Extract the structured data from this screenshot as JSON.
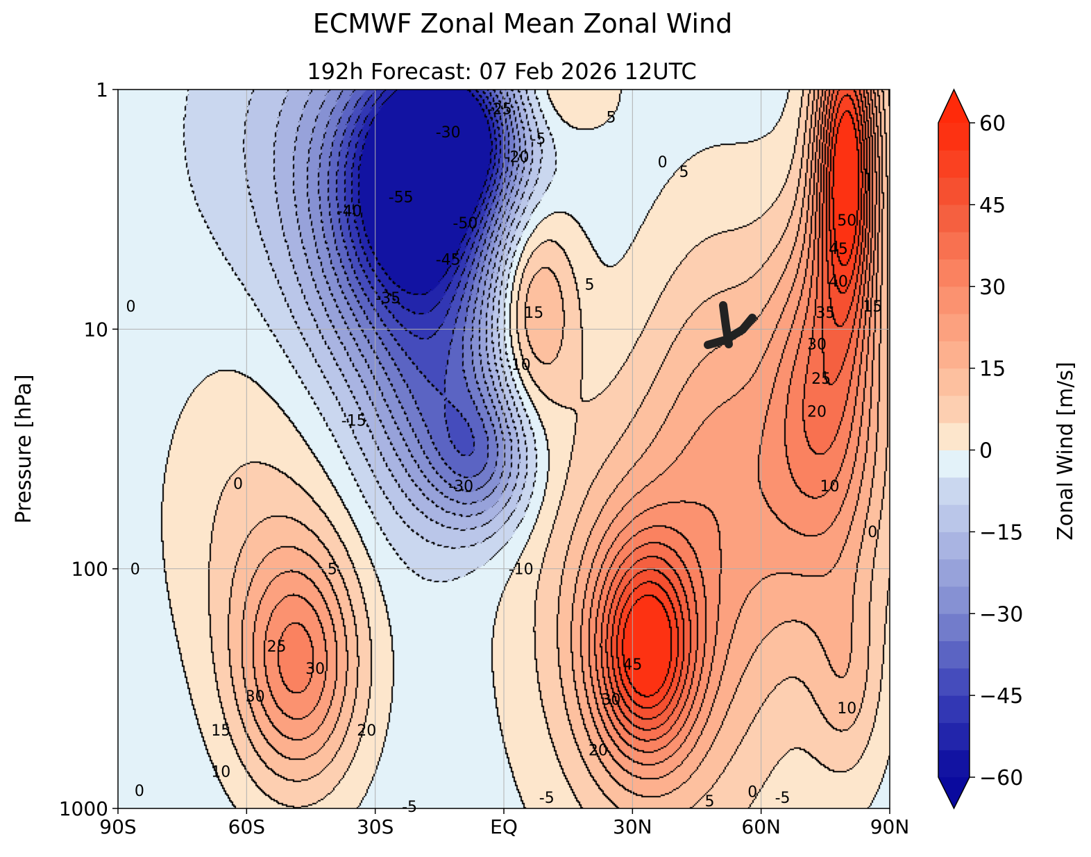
{
  "chart_data": {
    "type": "heatmap",
    "subtype": "filled-contour",
    "title": "ECMWF Zonal Mean Zonal Wind",
    "subtitle": "192h  Forecast:  07 Feb 2026  12UTC",
    "xlabel": "",
    "ylabel": "Pressure [hPa]",
    "xlim": [
      -90,
      90
    ],
    "ylim": [
      1000,
      1
    ],
    "yscale": "log",
    "xticks": [
      -90,
      -60,
      -30,
      0,
      30,
      60,
      90
    ],
    "xtick_labels": [
      "90S",
      "60S",
      "30S",
      "EQ",
      "30N",
      "60N",
      "90N"
    ],
    "yticks": [
      1,
      10,
      100,
      1000
    ],
    "ytick_labels": [
      "1",
      "10",
      "100",
      "1000"
    ],
    "grid": true,
    "colorbar": {
      "label": "Zonal Wind [m/s]",
      "min": -60,
      "max": 60,
      "step": 5,
      "ticks": [
        60,
        45,
        30,
        15,
        0,
        -15,
        -30,
        -45,
        -60
      ],
      "tick_labels": [
        "60",
        "45",
        "30",
        "15",
        "0",
        "−15",
        "−30",
        "−45",
        "−60"
      ],
      "extend": "both",
      "color_stops": [
        [
          -60,
          "#0a0a9e"
        ],
        [
          -45,
          "#3a40b8"
        ],
        [
          -30,
          "#7d88cf"
        ],
        [
          -15,
          "#b2bde6"
        ],
        [
          -5,
          "#d2e0f2"
        ],
        [
          -0.01,
          "#e3f2f9"
        ],
        [
          0,
          "#fde6cc"
        ],
        [
          15,
          "#fdb896"
        ],
        [
          30,
          "#fb8a68"
        ],
        [
          45,
          "#f45838"
        ],
        [
          60,
          "#ff2a0a"
        ]
      ]
    },
    "background_wind": -3,
    "field_features": [
      {
        "lat": -18,
        "p": 2,
        "amp": -55,
        "slat": 12,
        "slogp": 0.35
      },
      {
        "lat": -25,
        "p": 5,
        "amp": -28,
        "slat": 15,
        "slogp": 0.4
      },
      {
        "lat": -15,
        "p": 20,
        "amp": -24,
        "slat": 11,
        "slogp": 0.35
      },
      {
        "lat": -5,
        "p": 35,
        "amp": -22,
        "slat": 8,
        "slogp": 0.2
      },
      {
        "lat": -35,
        "p": 1.5,
        "amp": -14,
        "slat": 20,
        "slogp": 0.4
      },
      {
        "lat": -8,
        "p": 1.5,
        "amp": -25,
        "slat": 9,
        "slogp": 0.2
      },
      {
        "lat": -48,
        "p": 250,
        "amp": 33,
        "slat": 10,
        "slogp": 0.35
      },
      {
        "lat": -60,
        "p": 60,
        "amp": 8,
        "slat": 14,
        "slogp": 0.5
      },
      {
        "lat": 7,
        "p": 8,
        "amp": 21,
        "slat": 7,
        "slogp": 0.3
      },
      {
        "lat": 33,
        "p": 220,
        "amp": 46,
        "slat": 8,
        "slogp": 0.3
      },
      {
        "lat": 30,
        "p": 150,
        "amp": 14,
        "slat": 18,
        "slogp": 0.6
      },
      {
        "lat": 50,
        "p": 20,
        "amp": 12,
        "slat": 12,
        "slogp": 0.6
      },
      {
        "lat": 45,
        "p": 200,
        "amp": 10,
        "slat": 20,
        "slogp": 0.8
      },
      {
        "lat": 80,
        "p": 2,
        "amp": 62,
        "slat": 5,
        "slogp": 0.45
      },
      {
        "lat": 75,
        "p": 15,
        "amp": 28,
        "slat": 9,
        "slogp": 0.5
      },
      {
        "lat": 72,
        "p": 50,
        "amp": 12,
        "slat": 15,
        "slogp": 0.5
      },
      {
        "lat": 80,
        "p": 300,
        "amp": 11,
        "slat": 6,
        "slogp": 0.3
      },
      {
        "lat": 12,
        "p": 1,
        "amp": 9,
        "slat": 10,
        "slogp": 0.15
      }
    ],
    "contour_labels": [
      {
        "text": "-25",
        "lat": -1,
        "p": 1.2
      },
      {
        "text": "-30",
        "lat": -13,
        "p": 1.5
      },
      {
        "text": "-20",
        "lat": 3,
        "p": 1.9
      },
      {
        "text": "-5",
        "lat": 8,
        "p": 1.6
      },
      {
        "text": "-40",
        "lat": -36,
        "p": 3.2
      },
      {
        "text": "-55",
        "lat": -24,
        "p": 2.8
      },
      {
        "text": "-50",
        "lat": -9,
        "p": 3.6
      },
      {
        "text": "-45",
        "lat": -13,
        "p": 5.1
      },
      {
        "text": "-35",
        "lat": -27,
        "p": 7.4
      },
      {
        "text": "-15",
        "lat": -35,
        "p": 24
      },
      {
        "text": "-30",
        "lat": -10,
        "p": 45
      },
      {
        "text": "-10",
        "lat": 4,
        "p": 100
      },
      {
        "text": "5",
        "lat": 25,
        "p": 1.3
      },
      {
        "text": "0",
        "lat": 37,
        "p": 2
      },
      {
        "text": "5",
        "lat": 42,
        "p": 2.2
      },
      {
        "text": "5",
        "lat": 20,
        "p": 6.5
      },
      {
        "text": "15",
        "lat": 7,
        "p": 8.5
      },
      {
        "text": "10",
        "lat": 4,
        "p": 14
      },
      {
        "text": "0",
        "lat": -87,
        "p": 8
      },
      {
        "text": "0",
        "lat": -62,
        "p": 44
      },
      {
        "text": "5",
        "lat": -40,
        "p": 100
      },
      {
        "text": "25",
        "lat": -53,
        "p": 210
      },
      {
        "text": "30",
        "lat": -44,
        "p": 260
      },
      {
        "text": "30",
        "lat": -58,
        "p": 340
      },
      {
        "text": "20",
        "lat": -32,
        "p": 470
      },
      {
        "text": "15",
        "lat": -66,
        "p": 470
      },
      {
        "text": "10",
        "lat": -66,
        "p": 700
      },
      {
        "text": "0",
        "lat": -86,
        "p": 100
      },
      {
        "text": "45",
        "lat": 30,
        "p": 250
      },
      {
        "text": "30",
        "lat": 25,
        "p": 350
      },
      {
        "text": "20",
        "lat": 22,
        "p": 570
      },
      {
        "text": "50",
        "lat": 80,
        "p": 3.5
      },
      {
        "text": "45",
        "lat": 78,
        "p": 4.6
      },
      {
        "text": "40",
        "lat": 78,
        "p": 6.3
      },
      {
        "text": "35",
        "lat": 75,
        "p": 8.5
      },
      {
        "text": "30",
        "lat": 73,
        "p": 11.5
      },
      {
        "text": "25",
        "lat": 74,
        "p": 16
      },
      {
        "text": "20",
        "lat": 73,
        "p": 22
      },
      {
        "text": "10",
        "lat": 76,
        "p": 45
      },
      {
        "text": "15",
        "lat": 86,
        "p": 8
      },
      {
        "text": "0",
        "lat": 86,
        "p": 70
      },
      {
        "text": "10",
        "lat": 80,
        "p": 380
      },
      {
        "text": "0",
        "lat": 58,
        "p": 850
      },
      {
        "text": "-5",
        "lat": 65,
        "p": 900
      },
      {
        "text": "5",
        "lat": 48,
        "p": 930
      },
      {
        "text": "-5",
        "lat": 10,
        "p": 900
      },
      {
        "text": "-5",
        "lat": -22,
        "p": 980
      },
      {
        "text": "0",
        "lat": -85,
        "p": 840
      }
    ]
  }
}
